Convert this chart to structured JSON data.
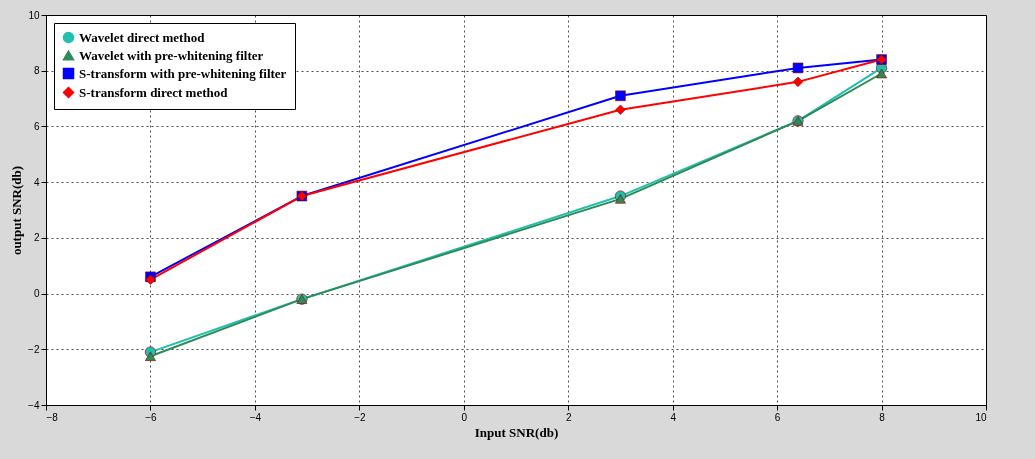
{
  "chart_data": {
    "type": "line",
    "xlabel": "Input SNR(db)",
    "ylabel": "output SNR(db)",
    "x": [
      -6,
      -3.1,
      3,
      6.4,
      8
    ],
    "series": [
      {
        "name": "Wavelet direct method",
        "color": "#20c0b0",
        "marker": "circle",
        "values": [
          -2.1,
          -0.2,
          3.5,
          6.2,
          8.1
        ]
      },
      {
        "name": "Wavelet with pre-whitening filter",
        "color": "#2e8b57",
        "marker": "triangle",
        "values": [
          -2.25,
          -0.2,
          3.4,
          6.2,
          7.9
        ]
      },
      {
        "name": "S-transform with pre-whitening filter",
        "color": "#0000ff",
        "marker": "square",
        "values": [
          0.6,
          3.5,
          7.1,
          8.1,
          8.4
        ]
      },
      {
        "name": "S-transform direct method",
        "color": "#ff0000",
        "marker": "diamond",
        "values": [
          0.5,
          3.5,
          6.6,
          7.6,
          8.4
        ]
      }
    ],
    "xlim": [
      -8,
      10
    ],
    "xticks": [
      -8,
      -6,
      -4,
      -2,
      0,
      2,
      4,
      6,
      8,
      10
    ],
    "ylim": [
      -4,
      10
    ],
    "yticks": [
      -4,
      -2,
      0,
      2,
      4,
      6,
      8,
      10
    ],
    "grid": true,
    "legend": "top left",
    "line_style": "solid"
  }
}
